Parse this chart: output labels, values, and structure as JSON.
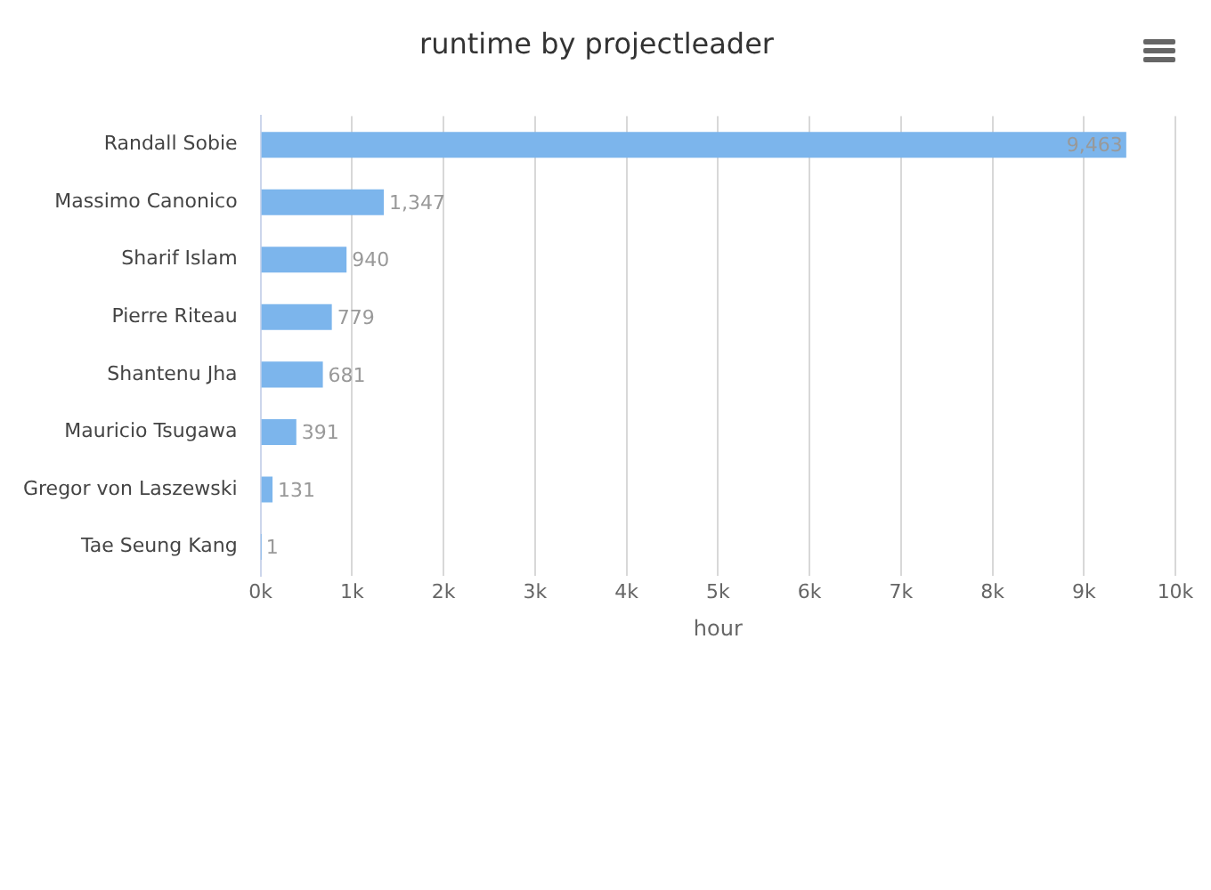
{
  "chart_data": {
    "type": "bar",
    "orientation": "horizontal",
    "title": "runtime by projectleader",
    "xlabel": "hour",
    "categories": [
      "Randall Sobie",
      "Massimo Canonico",
      "Sharif Islam",
      "Pierre Riteau",
      "Shantenu Jha",
      "Mauricio Tsugawa",
      "Gregor von Laszewski",
      "Tae Seung Kang"
    ],
    "values": [
      9463,
      1347,
      940,
      779,
      681,
      391,
      131,
      1
    ],
    "value_labels": [
      "9,463",
      "1,347",
      "940",
      "779",
      "681",
      "391",
      "131",
      "1"
    ],
    "color": "#7cb5ec",
    "xlim": [
      0,
      10000
    ],
    "xticks": [
      {
        "value": 0,
        "label": "0k"
      },
      {
        "value": 1000,
        "label": "1k"
      },
      {
        "value": 2000,
        "label": "2k"
      },
      {
        "value": 3000,
        "label": "3k"
      },
      {
        "value": 4000,
        "label": "4k"
      },
      {
        "value": 5000,
        "label": "5k"
      },
      {
        "value": 6000,
        "label": "6k"
      },
      {
        "value": 7000,
        "label": "7k"
      },
      {
        "value": 8000,
        "label": "8k"
      },
      {
        "value": 9000,
        "label": "9k"
      },
      {
        "value": 10000,
        "label": "10k"
      }
    ],
    "grid": "x",
    "legend": false
  }
}
